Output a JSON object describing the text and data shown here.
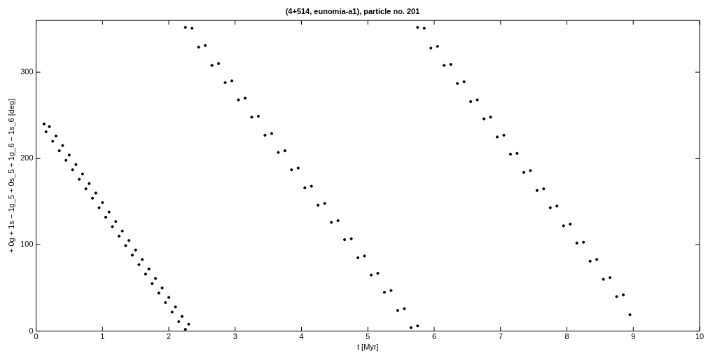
{
  "chart_data": {
    "type": "scatter",
    "title": "(4+514, eunomia-a1), particle no. 201",
    "xlabel": "t [Myr]",
    "ylabel": "+ 0g + 1s − 1g_5 + 0s_5 + 1g_6 − 1s_6 [deg]",
    "xlim": [
      0,
      10
    ],
    "xticks": [
      0,
      1,
      2,
      3,
      4,
      5,
      6,
      7,
      8,
      9,
      10
    ],
    "ylim": [
      0,
      360
    ],
    "yticks": [
      0,
      100,
      200,
      300
    ],
    "grid": false,
    "legend": false,
    "marker": "circle",
    "series": [
      {
        "color": "#000000",
        "x": [
          0.12,
          0.15,
          0.2,
          0.25,
          0.3,
          0.35,
          0.4,
          0.45,
          0.5,
          0.55,
          0.6,
          0.65,
          0.7,
          0.75,
          0.8,
          0.85,
          0.9,
          0.95,
          1.0,
          1.05,
          1.1,
          1.15,
          1.2,
          1.25,
          1.3,
          1.35,
          1.4,
          1.45,
          1.5,
          1.55,
          1.6,
          1.65,
          1.7,
          1.75,
          1.8,
          1.85,
          1.9,
          1.95,
          2.0,
          2.05,
          2.1,
          2.15,
          2.2,
          2.25,
          2.3,
          2.25,
          2.35,
          2.45,
          2.55,
          2.65,
          2.75,
          2.85,
          2.95,
          3.05,
          3.15,
          3.25,
          3.35,
          3.45,
          3.55,
          3.65,
          3.75,
          3.85,
          3.95,
          4.05,
          4.15,
          4.25,
          4.35,
          4.45,
          4.55,
          4.65,
          4.75,
          4.85,
          4.95,
          5.05,
          5.15,
          5.25,
          5.35,
          5.45,
          5.55,
          5.65,
          5.75,
          5.75,
          5.85,
          5.95,
          6.05,
          6.15,
          6.25,
          6.35,
          6.45,
          6.55,
          6.65,
          6.75,
          6.85,
          6.95,
          7.05,
          7.15,
          7.25,
          7.35,
          7.45,
          7.55,
          7.65,
          7.75,
          7.85,
          7.95,
          8.05,
          8.15,
          8.25,
          8.35,
          8.45,
          8.55,
          8.65,
          8.75,
          8.85,
          8.95
        ],
        "values": [
          240,
          231,
          237,
          220,
          226,
          209,
          215,
          198,
          204,
          187,
          193,
          176,
          182,
          165,
          171,
          154,
          160,
          143,
          149,
          132,
          138,
          121,
          127,
          110,
          116,
          99,
          105,
          88,
          94,
          77,
          83,
          66,
          72,
          55,
          61,
          44,
          50,
          33,
          39,
          22,
          28,
          11,
          17,
          2,
          8,
          352,
          351,
          329,
          331,
          308,
          310,
          288,
          290,
          268,
          270,
          248,
          249,
          227,
          229,
          207,
          209,
          187,
          189,
          166,
          168,
          146,
          148,
          126,
          128,
          106,
          107,
          85,
          87,
          65,
          67,
          45,
          47,
          24,
          26,
          4,
          6,
          352,
          351,
          328,
          330,
          308,
          309,
          287,
          289,
          266,
          268,
          246,
          248,
          225,
          227,
          205,
          206,
          184,
          186,
          163,
          165,
          143,
          145,
          122,
          124,
          102,
          103,
          81,
          83,
          60,
          62,
          40,
          42,
          19
        ]
      }
    ]
  }
}
